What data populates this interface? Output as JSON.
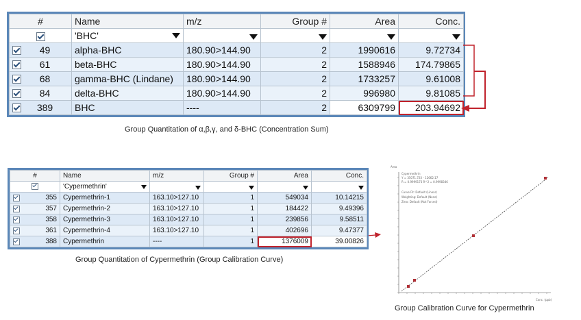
{
  "table1": {
    "headers": [
      "#",
      "Name",
      "m/z",
      "Group #",
      "Area",
      "Conc."
    ],
    "filter_name": "'BHC'",
    "rows": [
      {
        "id": "49",
        "name": "alpha-BHC",
        "mz": "180.90>144.90",
        "group": "2",
        "area": "1990616",
        "conc": "9.72734"
      },
      {
        "id": "61",
        "name": "beta-BHC",
        "mz": "180.90>144.90",
        "group": "2",
        "area": "1588946",
        "conc": "174.79865"
      },
      {
        "id": "68",
        "name": "gamma-BHC (Lindane)",
        "mz": "180.90>144.90",
        "group": "2",
        "area": "1733257",
        "conc": "9.61008"
      },
      {
        "id": "84",
        "name": "delta-BHC",
        "mz": "180.90>144.90",
        "group": "2",
        "area": "996980",
        "conc": "9.81085"
      },
      {
        "id": "389",
        "name": "BHC",
        "mz": "----",
        "group": "2",
        "area": "6309799",
        "conc": "203.94692"
      }
    ],
    "caption": "Group Quantitation of α,β,γ, and δ-BHC (Concentration Sum)"
  },
  "table2": {
    "headers": [
      "#",
      "Name",
      "m/z",
      "Group #",
      "Area",
      "Conc."
    ],
    "filter_name": "'Cypermethrin'",
    "rows": [
      {
        "id": "355",
        "name": "Cypermethrin-1",
        "mz": "163.10>127.10",
        "group": "1",
        "area": "549034",
        "conc": "10.14215"
      },
      {
        "id": "357",
        "name": "Cypermethrin-2",
        "mz": "163.10>127.10",
        "group": "1",
        "area": "184422",
        "conc": "9.49396"
      },
      {
        "id": "358",
        "name": "Cypermethrin-3",
        "mz": "163.10>127.10",
        "group": "1",
        "area": "239856",
        "conc": "9.58511"
      },
      {
        "id": "361",
        "name": "Cypermethrin-4",
        "mz": "163.10>127.10",
        "group": "1",
        "area": "402696",
        "conc": "9.47377"
      },
      {
        "id": "388",
        "name": "Cypermethrin",
        "mz": "----",
        "group": "1",
        "area": "1376009",
        "conc": "39.00826"
      }
    ],
    "caption": "Group Quantitation of Cypermethrin (Group Calibration Curve)"
  },
  "calibration": {
    "caption": "Group Calibration Curve for Cypermethrin",
    "legend_lines": [
      "Cypermethrin",
      "Y = 35071.72X - 12662.17",
      "R = 0.9999173  R^2 = 0.9998346",
      "Curve Fit: Default (Linear)",
      "Weighting: Default (None)",
      "Zero: Default (Not Forced)"
    ],
    "y_axis_label": "Area",
    "x_axis_label": "Conc. (ppb)"
  },
  "colors": {
    "accent_border": "#5b87b8",
    "highlight": "#c0232c",
    "row_a": "#dde9f6",
    "row_b": "#eaf2fa"
  }
}
